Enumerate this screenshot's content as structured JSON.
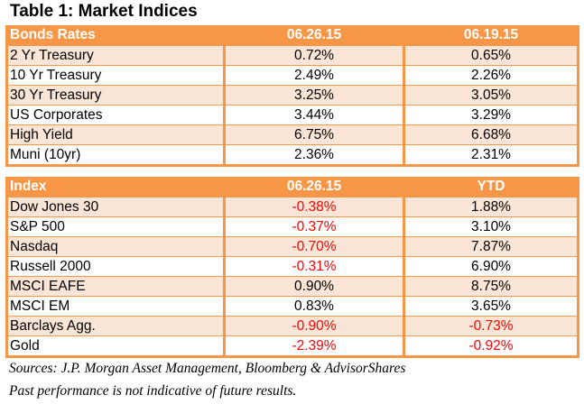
{
  "title": "Table 1: Market Indices",
  "bonds": {
    "headers": [
      "Bonds Rates",
      "06.26.15",
      "06.19.15"
    ],
    "rows": [
      [
        "2 Yr Treasury",
        "0.72%",
        "0.65%"
      ],
      [
        "10 Yr Treasury",
        "2.49%",
        "2.26%"
      ],
      [
        "30 Yr Treasury",
        "3.25%",
        "3.05%"
      ],
      [
        "US Corporates",
        "3.44%",
        "3.29%"
      ],
      [
        "High Yield",
        "6.75%",
        "6.68%"
      ],
      [
        "Muni (10yr)",
        "2.36%",
        "2.31%"
      ]
    ]
  },
  "index": {
    "headers": [
      "Index",
      "06.26.15",
      "YTD"
    ],
    "rows": [
      [
        "Dow Jones 30",
        "-0.38%",
        "1.88%"
      ],
      [
        "S&P 500",
        "-0.37%",
        "3.10%"
      ],
      [
        "Nasdaq",
        "-0.70%",
        "7.87%"
      ],
      [
        "Russell 2000",
        "-0.31%",
        "6.90%"
      ],
      [
        "MSCI EAFE",
        "0.90%",
        "8.75%"
      ],
      [
        "MSCI EM",
        "0.83%",
        "3.65%"
      ],
      [
        "Barclays Agg.",
        "-0.90%",
        "-0.73%"
      ],
      [
        "Gold",
        "-2.39%",
        "-0.92%"
      ]
    ]
  },
  "colors": {
    "header": "#f79646",
    "band": "#fbe5d6",
    "negative": "#ff0000"
  },
  "sources": "Sources: J.P. Morgan Asset Management, Bloomberg & AdvisorShares",
  "disclaimer": "Past performance is not indicative of future results."
}
